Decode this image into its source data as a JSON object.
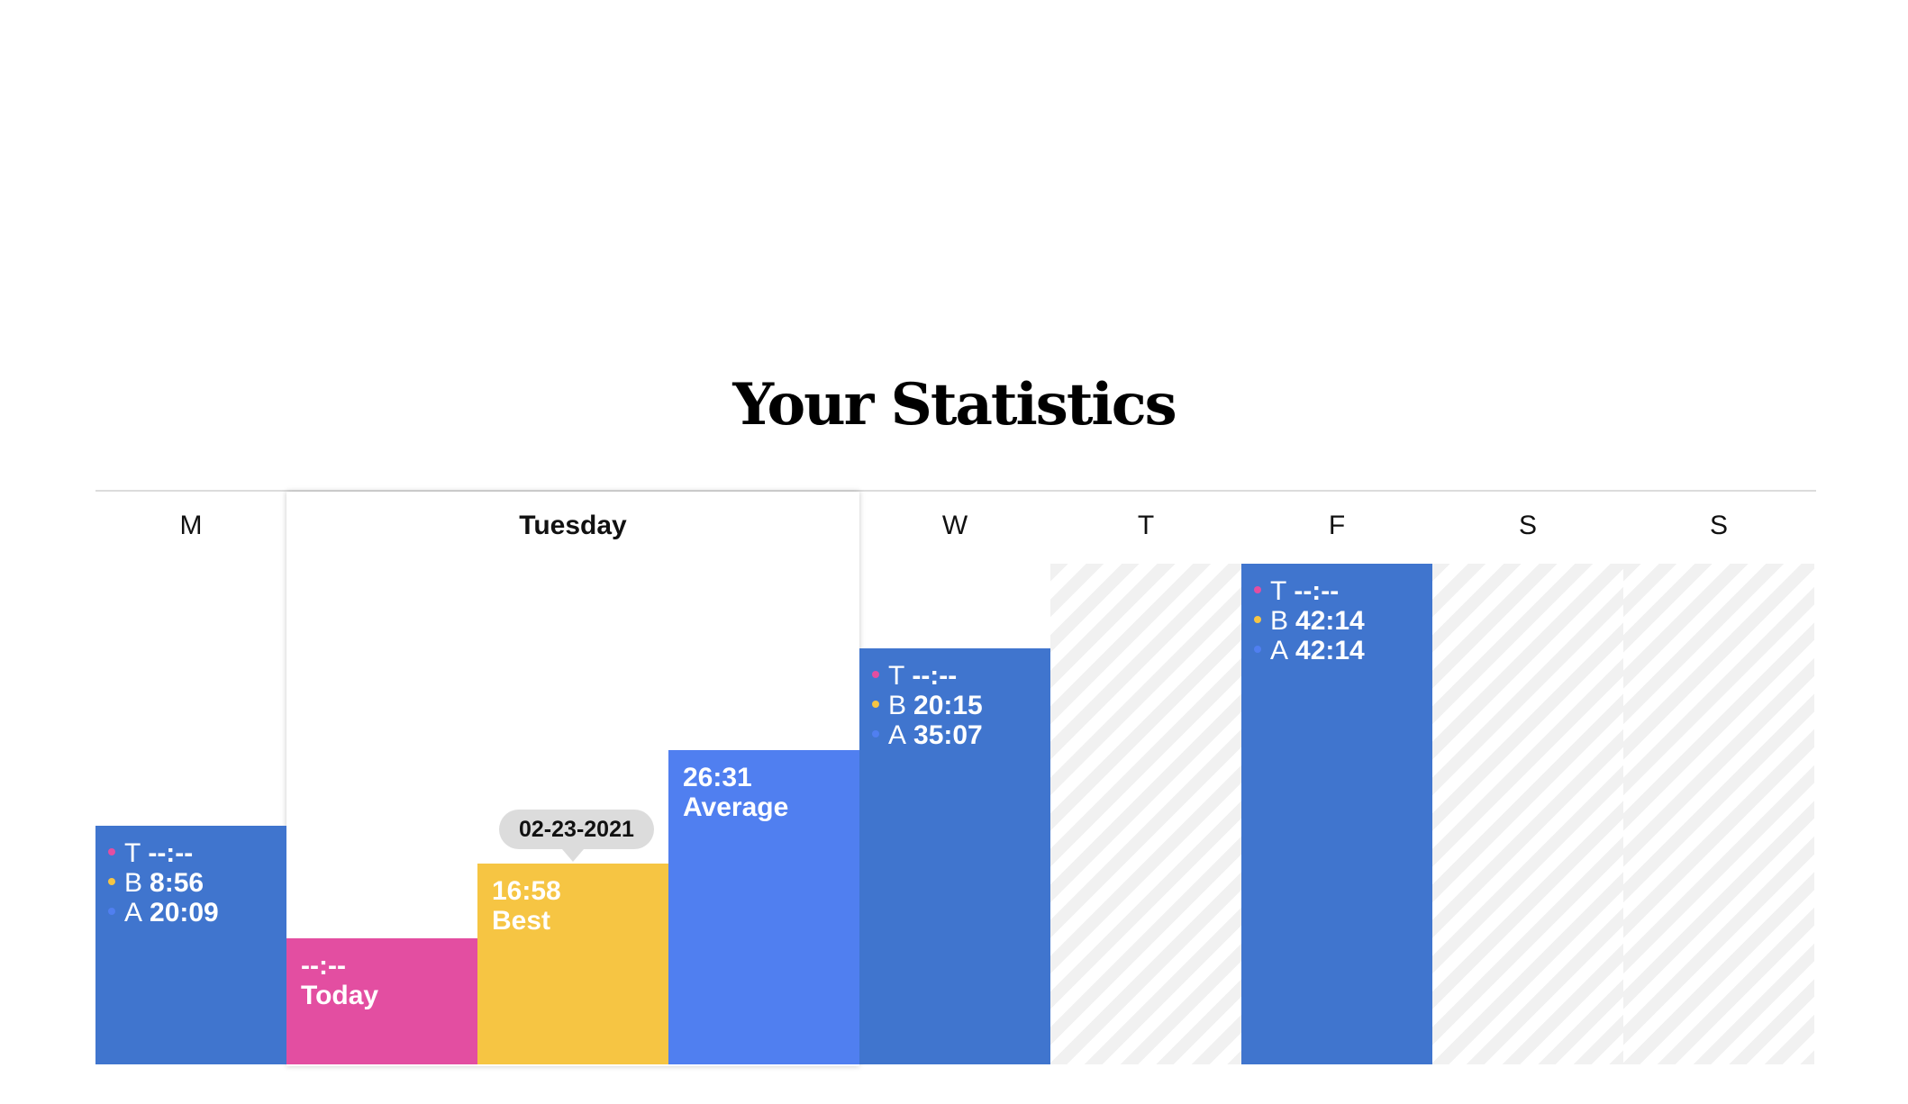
{
  "title": "Your Statistics",
  "colors": {
    "today": "#e34ea1",
    "best": "#f6c543",
    "average": "#507ff0",
    "day_bar": "#4075ce",
    "hatch": "#f1f1f1",
    "dot_t": "#e34ea1",
    "dot_b": "#f6c543",
    "dot_a": "#507ff0"
  },
  "chart_data": {
    "type": "bar",
    "title": "Your Statistics",
    "ylabel": "",
    "xlabel": "",
    "unit": "mm:ss",
    "ylim_seconds": [
      0,
      2534
    ],
    "categories": [
      "M",
      "Tuesday",
      "W",
      "T",
      "F",
      "S",
      "S"
    ],
    "days": [
      {
        "label": "M",
        "expanded": false,
        "has_data": true,
        "stats": [
          {
            "key": "T",
            "value": "--:--"
          },
          {
            "key": "B",
            "value": "8:56"
          },
          {
            "key": "A",
            "value": "20:09"
          }
        ],
        "bar_value_seconds": 1209
      },
      {
        "label": "Tuesday",
        "expanded": true,
        "has_data": true,
        "bars": [
          {
            "id": "today",
            "time": "--:--",
            "label": "Today",
            "value_seconds": 640,
            "color": "#e34ea1"
          },
          {
            "id": "best",
            "time": "16:58",
            "label": "Best",
            "value_seconds": 1018,
            "color": "#f6c543",
            "date": "02-23-2021"
          },
          {
            "id": "average",
            "time": "26:31",
            "label": "Average",
            "value_seconds": 1591,
            "color": "#507ff0"
          }
        ]
      },
      {
        "label": "W",
        "expanded": false,
        "has_data": true,
        "stats": [
          {
            "key": "T",
            "value": "--:--"
          },
          {
            "key": "B",
            "value": "20:15"
          },
          {
            "key": "A",
            "value": "35:07"
          }
        ],
        "bar_value_seconds": 2107
      },
      {
        "label": "T",
        "expanded": false,
        "has_data": false
      },
      {
        "label": "F",
        "expanded": false,
        "has_data": true,
        "stats": [
          {
            "key": "T",
            "value": "--:--"
          },
          {
            "key": "B",
            "value": "42:14"
          },
          {
            "key": "A",
            "value": "42:14"
          }
        ],
        "bar_value_seconds": 2534
      },
      {
        "label": "S",
        "expanded": false,
        "has_data": false
      },
      {
        "label": "S",
        "expanded": false,
        "has_data": false
      }
    ]
  }
}
